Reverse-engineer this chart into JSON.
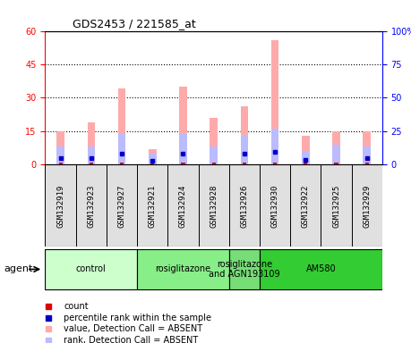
{
  "title": "GDS2453 / 221585_at",
  "samples": [
    "GSM132919",
    "GSM132923",
    "GSM132927",
    "GSM132921",
    "GSM132924",
    "GSM132928",
    "GSM132926",
    "GSM132930",
    "GSM132922",
    "GSM132925",
    "GSM132929"
  ],
  "pink_bars": [
    15,
    19,
    34,
    7,
    35,
    21,
    26,
    56,
    13,
    15,
    15
  ],
  "lavender_bars": [
    8,
    8,
    14,
    5,
    14,
    8,
    13,
    16,
    6,
    9,
    8
  ],
  "red_bars": [
    1,
    1,
    1,
    1,
    1,
    1,
    1,
    1,
    1,
    1,
    1
  ],
  "blue_dots_y": [
    5,
    5,
    8.5,
    3,
    8.5,
    null,
    8,
    9.5,
    3.5,
    null,
    5
  ],
  "ylim_left": [
    0,
    60
  ],
  "ylim_right": [
    0,
    100
  ],
  "yticks_left": [
    0,
    15,
    30,
    45,
    60
  ],
  "yticks_right": [
    0,
    25,
    50,
    75,
    100
  ],
  "groups": [
    {
      "label": "control",
      "start": 0,
      "end": 3,
      "color": "#ccffcc"
    },
    {
      "label": "rosiglitazone",
      "start": 3,
      "end": 6,
      "color": "#88ee88"
    },
    {
      "label": "rosiglitazone\nand AGN193109",
      "start": 6,
      "end": 7,
      "color": "#77dd77"
    },
    {
      "label": "AM580",
      "start": 7,
      "end": 11,
      "color": "#33cc33"
    }
  ],
  "colors": {
    "red_bar": "#dd0000",
    "blue_dot": "#0000cc",
    "pink_bar": "#ffaaaa",
    "lavender_bar": "#bbbbff",
    "plot_bg": "#ffffff",
    "tick_area_bg": "#e0e0e0"
  },
  "legend": [
    {
      "color": "#dd0000",
      "marker": "s",
      "label": "count"
    },
    {
      "color": "#0000cc",
      "marker": "s",
      "label": "percentile rank within the sample"
    },
    {
      "color": "#ffaaaa",
      "marker": "s",
      "label": "value, Detection Call = ABSENT"
    },
    {
      "color": "#bbbbff",
      "marker": "s",
      "label": "rank, Detection Call = ABSENT"
    }
  ],
  "bar_width": 0.25,
  "thin_bar_width": 0.12
}
